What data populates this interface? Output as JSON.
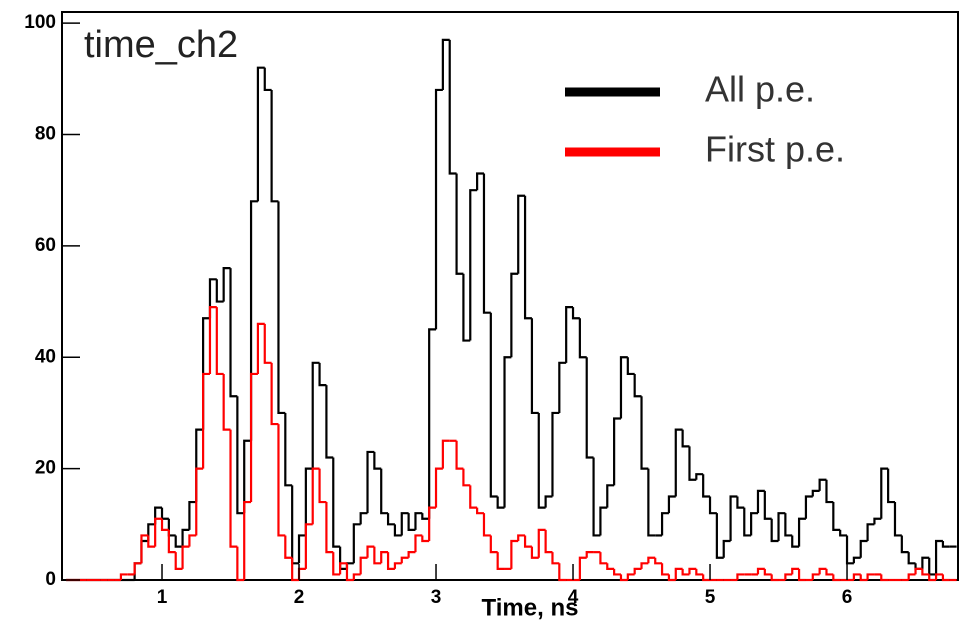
{
  "chart_data": {
    "type": "histogram",
    "title": "time_ch2",
    "x_label": "Time, ns",
    "bins": [
      0.3,
      0.35,
      0.4,
      0.45,
      0.5,
      0.55,
      0.6,
      0.65,
      0.7,
      0.75,
      0.8,
      0.85,
      0.9,
      0.95,
      1.0,
      1.05,
      1.1,
      1.15,
      1.2,
      1.25,
      1.3,
      1.35,
      1.4,
      1.45,
      1.5,
      1.55,
      1.6,
      1.65,
      1.7,
      1.75,
      1.8,
      1.85,
      1.9,
      1.95,
      2.0,
      2.05,
      2.1,
      2.15,
      2.2,
      2.25,
      2.3,
      2.35,
      2.4,
      2.45,
      2.5,
      2.55,
      2.6,
      2.65,
      2.7,
      2.75,
      2.8,
      2.85,
      2.9,
      2.95,
      3.0,
      3.05,
      3.1,
      3.15,
      3.2,
      3.25,
      3.3,
      3.35,
      3.4,
      3.45,
      3.5,
      3.55,
      3.6,
      3.65,
      3.7,
      3.75,
      3.8,
      3.85,
      3.9,
      3.95,
      4.0,
      4.05,
      4.1,
      4.15,
      4.2,
      4.25,
      4.3,
      4.35,
      4.4,
      4.45,
      4.5,
      4.55,
      4.6,
      4.65,
      4.7,
      4.75,
      4.8,
      4.85,
      4.9,
      4.95,
      5.0,
      5.05,
      5.1,
      5.15,
      5.2,
      5.25,
      5.3,
      5.35,
      5.4,
      5.45,
      5.5,
      5.55,
      5.6,
      5.65,
      5.7,
      5.75,
      5.8,
      5.85,
      5.9,
      5.95,
      6.0,
      6.05,
      6.1,
      6.15,
      6.2,
      6.25,
      6.3,
      6.35,
      6.4,
      6.45,
      6.5,
      6.55,
      6.6,
      6.65,
      6.7,
      6.75,
      6.8
    ],
    "series": [
      {
        "name": "All p.e.",
        "color": "#000000",
        "values": [
          0,
          0,
          0,
          0,
          0,
          0,
          0,
          0,
          0,
          0,
          3,
          7,
          10,
          13,
          11,
          8,
          6,
          9,
          14,
          27,
          47,
          54,
          50,
          56,
          33,
          12,
          25,
          68,
          92,
          88,
          68,
          30,
          17,
          3,
          8,
          20,
          39,
          35,
          22,
          6,
          2,
          3,
          10,
          12,
          23,
          20,
          12,
          10,
          8,
          12,
          9,
          12,
          11,
          45,
          88,
          97,
          73,
          55,
          43,
          70,
          73,
          48,
          15,
          13,
          40,
          55,
          69,
          47,
          30,
          13,
          15,
          30,
          39,
          49,
          47,
          40,
          22,
          8,
          13,
          17,
          29,
          40,
          37,
          33,
          20,
          8,
          8,
          12,
          15,
          27,
          24,
          18,
          19,
          15,
          12,
          4,
          7,
          15,
          13,
          8,
          12,
          16,
          11,
          7,
          12,
          8,
          6,
          11,
          15,
          16,
          18,
          14,
          9,
          8,
          3,
          4,
          7,
          10,
          11,
          20,
          14,
          8,
          5,
          3,
          2,
          4,
          1,
          7,
          6,
          6
        ]
      },
      {
        "name": "First p.e.",
        "color": "#ff0000",
        "values": [
          0,
          0,
          0,
          0,
          0,
          0,
          0,
          0,
          1,
          1,
          3,
          8,
          6,
          11,
          9,
          5,
          2,
          6,
          8,
          20,
          37,
          49,
          37,
          27,
          6,
          0,
          14,
          37,
          46,
          39,
          28,
          8,
          4,
          0,
          2,
          10,
          20,
          14,
          5,
          1,
          3,
          0,
          1,
          4,
          6,
          3,
          5,
          2,
          3,
          4,
          5,
          8,
          7,
          13,
          20,
          25,
          25,
          20,
          17,
          13,
          12,
          8,
          5,
          2,
          2,
          7,
          8,
          6,
          4,
          9,
          5,
          3,
          0,
          0,
          0,
          4,
          5,
          5,
          3,
          2,
          1,
          0,
          1,
          2,
          3,
          4,
          3,
          1,
          0,
          2,
          1,
          2,
          1,
          0,
          0,
          0,
          0,
          0,
          1,
          1,
          1,
          2,
          1,
          0,
          0,
          1,
          2,
          0,
          0,
          1,
          2,
          1,
          0,
          0,
          0,
          1,
          0,
          1,
          1,
          0,
          0,
          0,
          0,
          1,
          2,
          1,
          0,
          1,
          0,
          0
        ]
      }
    ],
    "xlim": [
      0.27,
      6.81
    ],
    "ylim": [
      0,
      102
    ],
    "xticks": [
      1,
      2,
      3,
      4,
      5,
      6
    ],
    "yticks": [
      0,
      20,
      40,
      60,
      80,
      100
    ]
  }
}
